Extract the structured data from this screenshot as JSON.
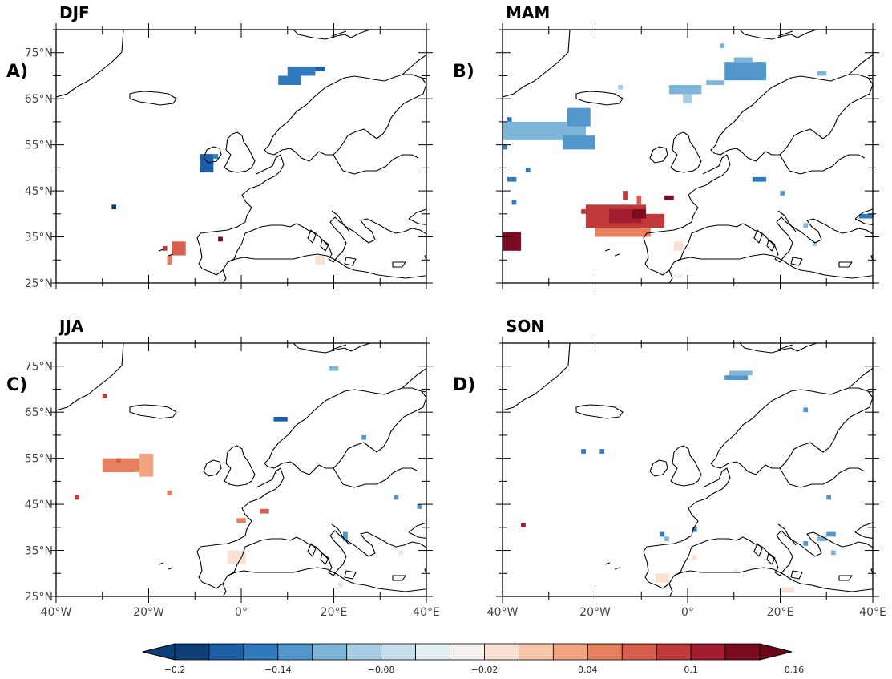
{
  "panels": [
    {
      "id": "djf",
      "title": "DJF",
      "letter": "A)"
    },
    {
      "id": "mam",
      "title": "MAM",
      "letter": "B)"
    },
    {
      "id": "jja",
      "title": "JJA",
      "letter": "C)"
    },
    {
      "id": "son",
      "title": "SON",
      "letter": "D)"
    }
  ],
  "lat_labels": [
    "75°N",
    "65°N",
    "55°N",
    "45°N",
    "35°N",
    "25°N"
  ],
  "lon_labels": [
    "40°W",
    "20°W",
    "0°",
    "20°E",
    "40°E"
  ],
  "map_extent": {
    "lon": [
      -40,
      40
    ],
    "lat": [
      25,
      80
    ]
  },
  "colorbar": {
    "labels": [
      "−0.2",
      "−0.14",
      "−0.08",
      "−0.02",
      "0.04",
      "0.1",
      "0.16"
    ],
    "colors": [
      "#0c3f77",
      "#1c5fa6",
      "#3079bd",
      "#5197cb",
      "#7eb6da",
      "#a6cde3",
      "#c8e0ee",
      "#e3eef5",
      "#f6f1ed",
      "#fbe1d3",
      "#f9c6aa",
      "#f3a582",
      "#e7805f",
      "#d75f4c",
      "#c03a3c",
      "#a11d2f",
      "#7a0b20"
    ],
    "extend_left": "#0c3f77",
    "extend_right": "#6a0717"
  },
  "anomaly_cells": {
    "djf": [
      {
        "lon": [
          8,
          13
        ],
        "lat": [
          68,
          70
        ],
        "color": "#3079bd"
      },
      {
        "lon": [
          10,
          16
        ],
        "lat": [
          70,
          72
        ],
        "color": "#3079bd"
      },
      {
        "lon": [
          16,
          18
        ],
        "lat": [
          71,
          72
        ],
        "color": "#1c5fa6"
      },
      {
        "lon": [
          -9,
          -6
        ],
        "lat": [
          49,
          53
        ],
        "color": "#1c5fa6"
      },
      {
        "lon": [
          -6,
          -5
        ],
        "lat": [
          52,
          53
        ],
        "color": "#3079bd"
      },
      {
        "lon": [
          -28,
          -27
        ],
        "lat": [
          41,
          42
        ],
        "color": "#0c3f77"
      },
      {
        "lon": [
          -15,
          -12
        ],
        "lat": [
          31,
          34
        ],
        "color": "#d75f4c"
      },
      {
        "lon": [
          -17,
          -16
        ],
        "lat": [
          32,
          33
        ],
        "color": "#c03a3c"
      },
      {
        "lon": [
          -16,
          -15
        ],
        "lat": [
          29,
          31
        ],
        "color": "#e7805f"
      },
      {
        "lon": [
          -5,
          -4
        ],
        "lat": [
          34,
          35
        ],
        "color": "#7a0b20"
      },
      {
        "lon": [
          -6,
          -5
        ],
        "lat": [
          27,
          28
        ],
        "color": "#e3eef5"
      },
      {
        "lon": [
          -5,
          -3
        ],
        "lat": [
          25,
          26
        ],
        "color": "#e3eef5"
      },
      {
        "lon": [
          16,
          18
        ],
        "lat": [
          29,
          31
        ],
        "color": "#fbe1d3"
      }
    ],
    "mam": [
      {
        "lon": [
          8,
          17
        ],
        "lat": [
          69,
          73
        ],
        "color": "#5197cb"
      },
      {
        "lon": [
          10,
          14
        ],
        "lat": [
          73,
          74
        ],
        "color": "#7eb6da"
      },
      {
        "lon": [
          -4,
          3
        ],
        "lat": [
          66,
          68
        ],
        "color": "#7eb6da"
      },
      {
        "lon": [
          -1,
          1
        ],
        "lat": [
          64,
          66
        ],
        "color": "#a6cde3"
      },
      {
        "lon": [
          4,
          8
        ],
        "lat": [
          68,
          69
        ],
        "color": "#7eb6da"
      },
      {
        "lon": [
          -15,
          -14
        ],
        "lat": [
          67,
          68
        ],
        "color": "#a6cde3"
      },
      {
        "lon": [
          -40,
          -22
        ],
        "lat": [
          56,
          60
        ],
        "color": "#7eb6da"
      },
      {
        "lon": [
          -26,
          -21
        ],
        "lat": [
          59,
          63
        ],
        "color": "#5197cb"
      },
      {
        "lon": [
          -27,
          -20
        ],
        "lat": [
          54,
          57
        ],
        "color": "#5197cb"
      },
      {
        "lon": [
          -39,
          -38
        ],
        "lat": [
          60,
          61
        ],
        "color": "#3079bd"
      },
      {
        "lon": [
          -35,
          -34
        ],
        "lat": [
          49,
          50
        ],
        "color": "#3079bd"
      },
      {
        "lon": [
          -39,
          -37
        ],
        "lat": [
          47,
          48
        ],
        "color": "#3079bd"
      },
      {
        "lon": [
          -38,
          -37
        ],
        "lat": [
          42,
          43
        ],
        "color": "#3079bd"
      },
      {
        "lon": [
          -40,
          -39
        ],
        "lat": [
          54,
          55
        ],
        "color": "#3079bd"
      },
      {
        "lon": [
          -40,
          -36
        ],
        "lat": [
          32,
          36
        ],
        "color": "#7a0b20"
      },
      {
        "lon": [
          -22,
          -9
        ],
        "lat": [
          37,
          42
        ],
        "color": "#c03a3c"
      },
      {
        "lon": [
          -20,
          -8
        ],
        "lat": [
          35,
          37
        ],
        "color": "#e7805f"
      },
      {
        "lon": [
          -17,
          -10
        ],
        "lat": [
          38,
          41
        ],
        "color": "#a11d2f"
      },
      {
        "lon": [
          -12,
          -9
        ],
        "lat": [
          39,
          41
        ],
        "color": "#7a0b20"
      },
      {
        "lon": [
          -9,
          -5
        ],
        "lat": [
          37,
          40
        ],
        "color": "#c03a3c"
      },
      {
        "lon": [
          -5,
          -3
        ],
        "lat": [
          43,
          44
        ],
        "color": "#7a0b20"
      },
      {
        "lon": [
          -11,
          -10
        ],
        "lat": [
          42,
          44
        ],
        "color": "#d75f4c"
      },
      {
        "lon": [
          -14,
          -13
        ],
        "lat": [
          43,
          45
        ],
        "color": "#c03a3c"
      },
      {
        "lon": [
          -23,
          -22
        ],
        "lat": [
          40,
          41
        ],
        "color": "#c03a3c"
      },
      {
        "lon": [
          -3,
          -1
        ],
        "lat": [
          32,
          34
        ],
        "color": "#fbe1d3"
      },
      {
        "lon": [
          -3,
          -1
        ],
        "lat": [
          26,
          27
        ],
        "color": "#f6f1ed"
      },
      {
        "lon": [
          14,
          17
        ],
        "lat": [
          47,
          48
        ],
        "color": "#3079bd"
      },
      {
        "lon": [
          20,
          21
        ],
        "lat": [
          44,
          45
        ],
        "color": "#5197cb"
      },
      {
        "lon": [
          25,
          26
        ],
        "lat": [
          37,
          38
        ],
        "color": "#7eb6da"
      },
      {
        "lon": [
          27,
          28
        ],
        "lat": [
          33,
          34
        ],
        "color": "#a6cde3"
      },
      {
        "lon": [
          37,
          40
        ],
        "lat": [
          39,
          40
        ],
        "color": "#3079bd"
      },
      {
        "lon": [
          28,
          30
        ],
        "lat": [
          70,
          71
        ],
        "color": "#7eb6da"
      },
      {
        "lon": [
          7,
          8
        ],
        "lat": [
          76,
          77
        ],
        "color": "#7eb6da"
      }
    ],
    "jja": [
      {
        "lon": [
          -30,
          -22
        ],
        "lat": [
          52,
          55
        ],
        "color": "#e7805f"
      },
      {
        "lon": [
          -22,
          -19
        ],
        "lat": [
          51,
          56
        ],
        "color": "#f3a582"
      },
      {
        "lon": [
          -27,
          -26
        ],
        "lat": [
          54,
          55
        ],
        "color": "#d75f4c"
      },
      {
        "lon": [
          -36,
          -35
        ],
        "lat": [
          46,
          47
        ],
        "color": "#c03a3c"
      },
      {
        "lon": [
          -16,
          -15
        ],
        "lat": [
          47,
          48
        ],
        "color": "#e7805f"
      },
      {
        "lon": [
          -30,
          -29
        ],
        "lat": [
          68,
          69
        ],
        "color": "#c03a3c"
      },
      {
        "lon": [
          7,
          10
        ],
        "lat": [
          63,
          64
        ],
        "color": "#1c5fa6"
      },
      {
        "lon": [
          19,
          21
        ],
        "lat": [
          74,
          75
        ],
        "color": "#7eb6da"
      },
      {
        "lon": [
          26,
          27
        ],
        "lat": [
          59,
          60
        ],
        "color": "#5197cb"
      },
      {
        "lon": [
          -1,
          1
        ],
        "lat": [
          41,
          42
        ],
        "color": "#e7805f"
      },
      {
        "lon": [
          4,
          6
        ],
        "lat": [
          43,
          44
        ],
        "color": "#d75f4c"
      },
      {
        "lon": [
          22,
          23
        ],
        "lat": [
          37,
          39
        ],
        "color": "#5197cb"
      },
      {
        "lon": [
          -3,
          1
        ],
        "lat": [
          32,
          35
        ],
        "color": "#fbe1d3"
      },
      {
        "lon": [
          21,
          22
        ],
        "lat": [
          27,
          28
        ],
        "color": "#fbe1d3"
      },
      {
        "lon": [
          33,
          34
        ],
        "lat": [
          46,
          47
        ],
        "color": "#5197cb"
      },
      {
        "lon": [
          38,
          39
        ],
        "lat": [
          44,
          45
        ],
        "color": "#5197cb"
      },
      {
        "lon": [
          34,
          35
        ],
        "lat": [
          34,
          35
        ],
        "color": "#fbe1d3"
      }
    ],
    "son": [
      {
        "lon": [
          8,
          13
        ],
        "lat": [
          72,
          73
        ],
        "color": "#5197cb"
      },
      {
        "lon": [
          9,
          14
        ],
        "lat": [
          73,
          74
        ],
        "color": "#7eb6da"
      },
      {
        "lon": [
          25,
          26
        ],
        "lat": [
          65,
          66
        ],
        "color": "#5197cb"
      },
      {
        "lon": [
          -23,
          -22
        ],
        "lat": [
          56,
          57
        ],
        "color": "#3079bd"
      },
      {
        "lon": [
          -19,
          -18
        ],
        "lat": [
          56,
          57
        ],
        "color": "#3079bd"
      },
      {
        "lon": [
          -36,
          -35
        ],
        "lat": [
          40,
          41
        ],
        "color": "#a11d2f"
      },
      {
        "lon": [
          -6,
          -5
        ],
        "lat": [
          38,
          39
        ],
        "color": "#3079bd"
      },
      {
        "lon": [
          -5,
          -4
        ],
        "lat": [
          37,
          38
        ],
        "color": "#7eb6da"
      },
      {
        "lon": [
          1,
          2
        ],
        "lat": [
          39,
          40
        ],
        "color": "#3079bd"
      },
      {
        "lon": [
          1,
          2
        ],
        "lat": [
          33,
          34
        ],
        "color": "#fbe1d3"
      },
      {
        "lon": [
          -7,
          -4
        ],
        "lat": [
          28,
          30
        ],
        "color": "#fbe1d3"
      },
      {
        "lon": [
          -5,
          -4
        ],
        "lat": [
          25,
          27
        ],
        "color": "#f6f1ed"
      },
      {
        "lon": [
          20,
          23
        ],
        "lat": [
          26,
          27
        ],
        "color": "#fbe1d3"
      },
      {
        "lon": [
          25,
          26
        ],
        "lat": [
          36,
          37
        ],
        "color": "#5197cb"
      },
      {
        "lon": [
          28,
          30
        ],
        "lat": [
          37,
          38
        ],
        "color": "#7eb6da"
      },
      {
        "lon": [
          31,
          32
        ],
        "lat": [
          34,
          35
        ],
        "color": "#7eb6da"
      },
      {
        "lon": [
          30,
          32
        ],
        "lat": [
          38,
          39
        ],
        "color": "#5197cb"
      },
      {
        "lon": [
          30,
          31
        ],
        "lat": [
          46,
          47
        ],
        "color": "#5197cb"
      },
      {
        "lon": [
          10,
          11
        ],
        "lat": [
          30,
          31
        ],
        "color": "#e3eef5"
      }
    ]
  }
}
